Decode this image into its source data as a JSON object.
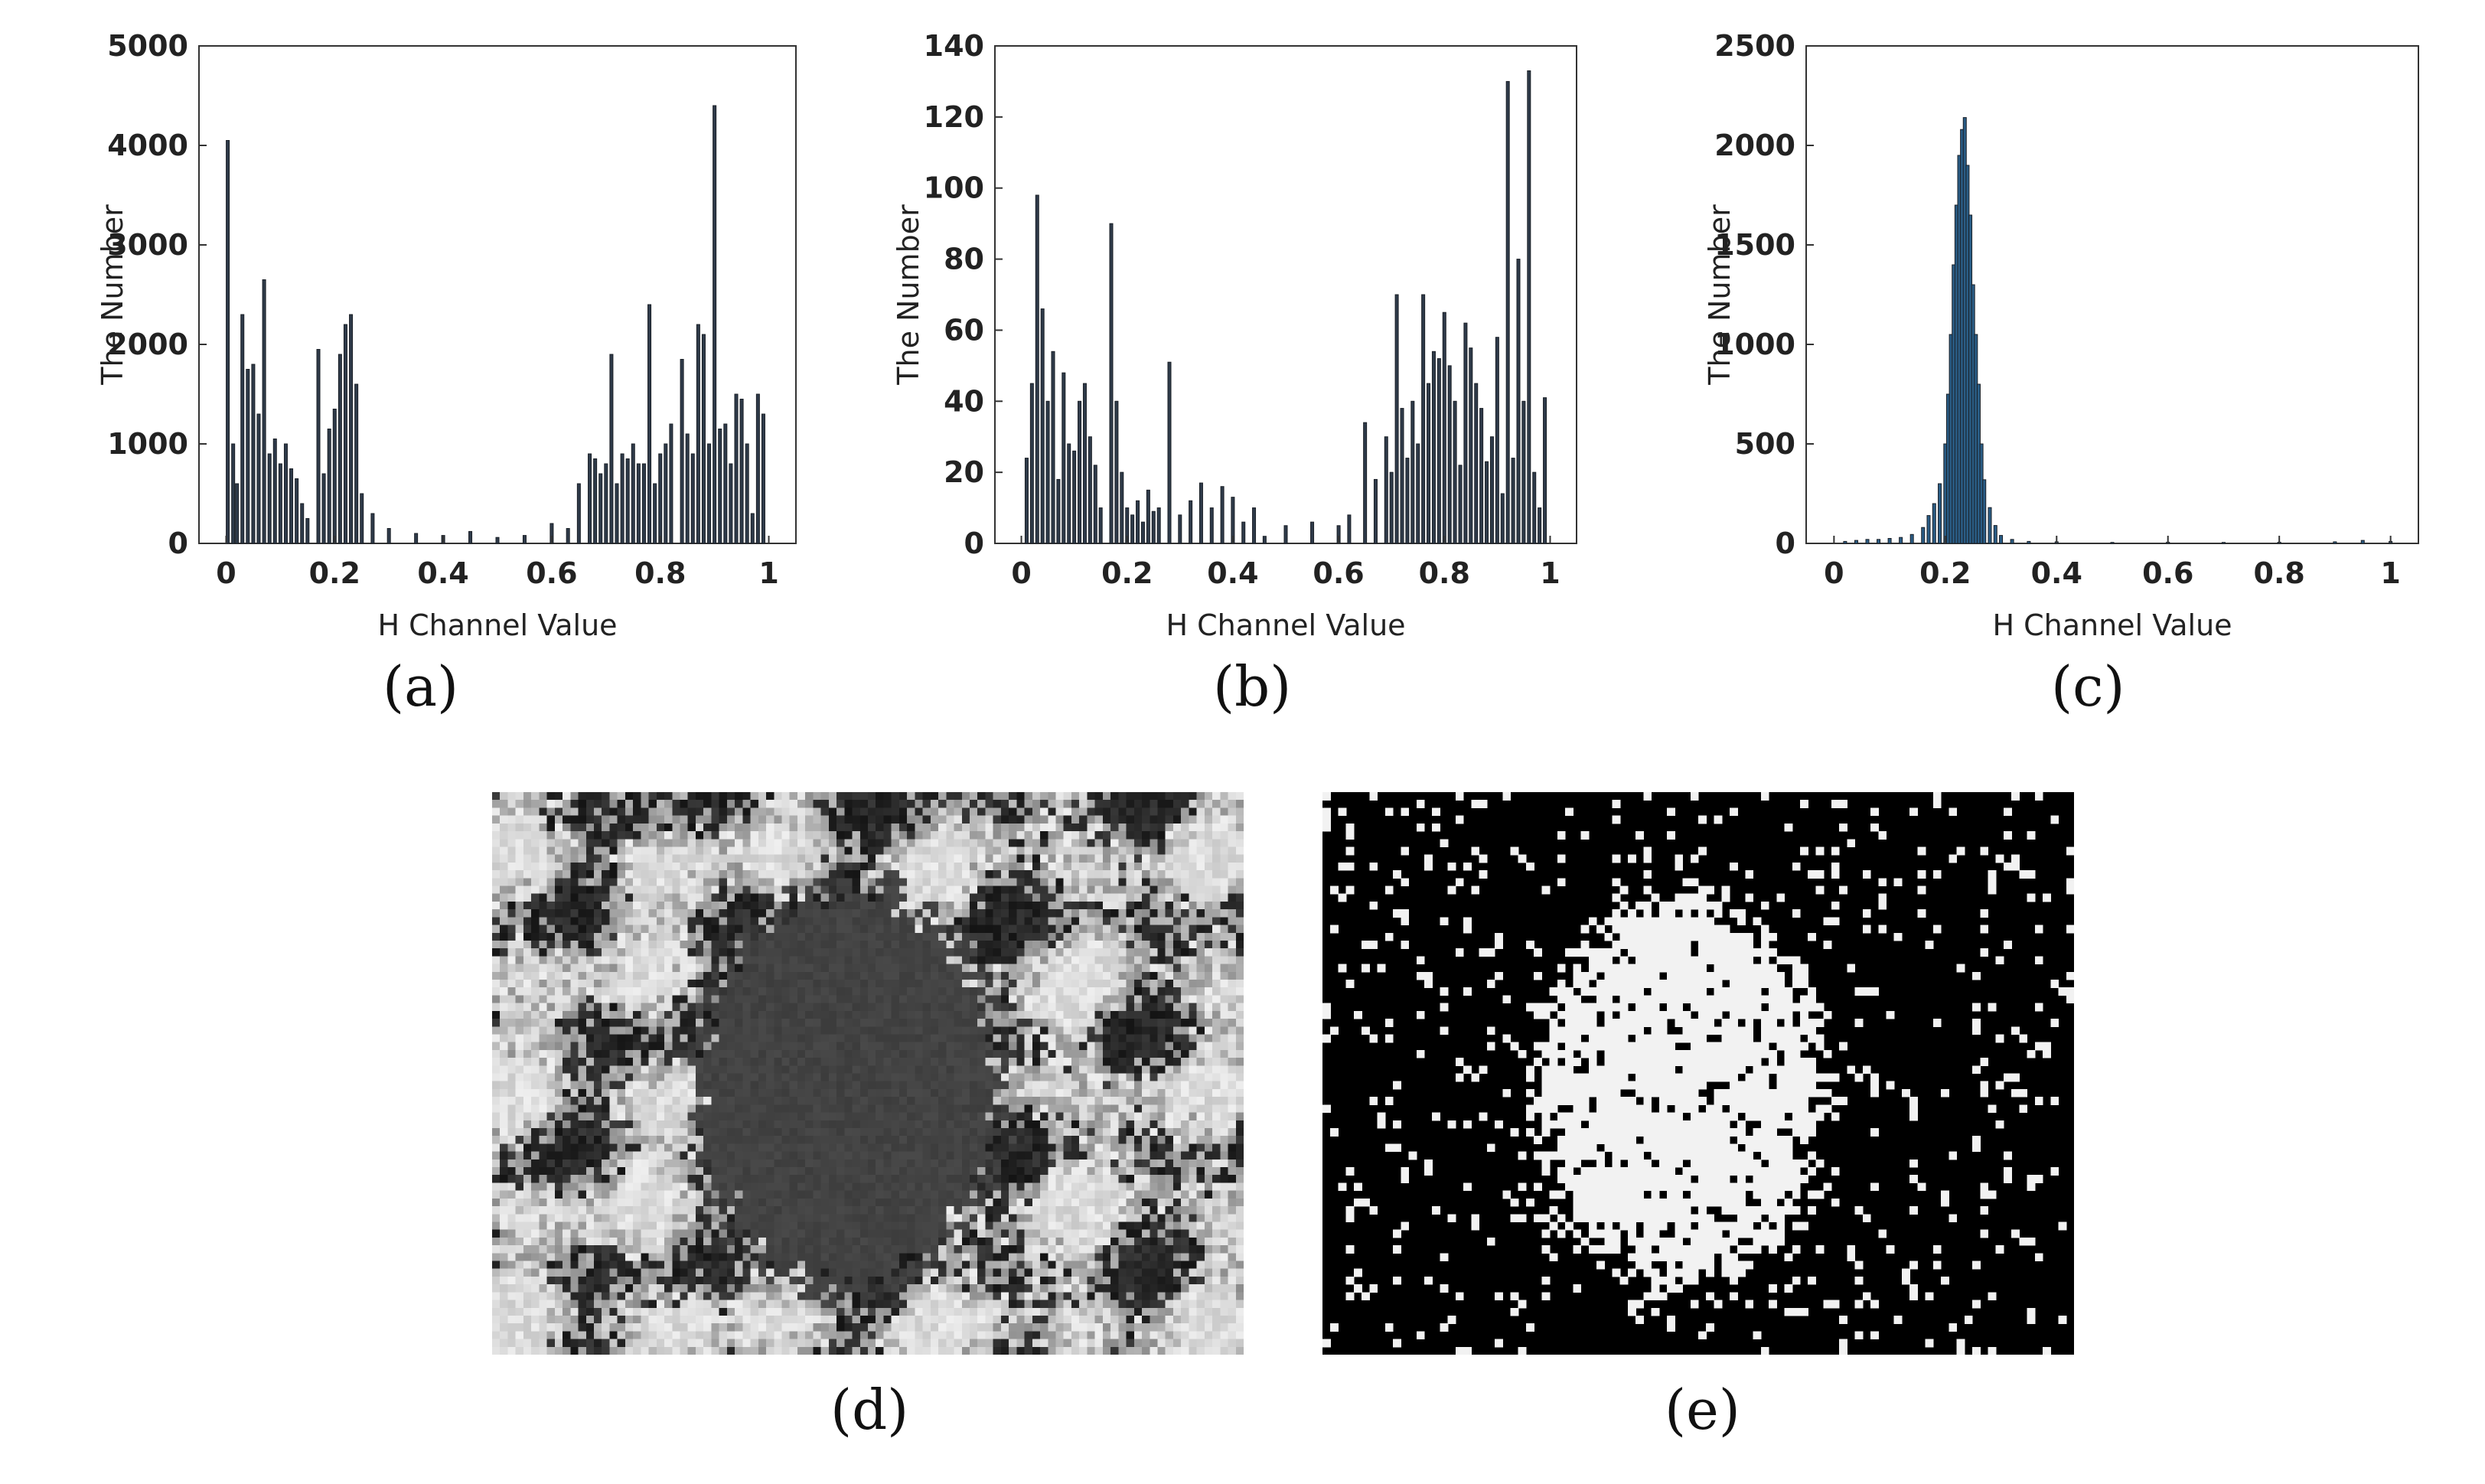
{
  "chart_data": [
    {
      "type": "bar",
      "panel_label": "(a)",
      "xlabel": "H Channel Value",
      "ylabel": "The Number",
      "xlim": [
        -0.05,
        1.05
      ],
      "ylim": [
        0,
        5000
      ],
      "xticks": [
        0,
        0.2,
        0.4,
        0.6,
        0.8,
        1
      ],
      "xtick_labels": [
        "0",
        "0.2",
        "0.4",
        "0.6",
        "0.8",
        "1"
      ],
      "yticks": [
        0,
        1000,
        2000,
        3000,
        4000,
        5000
      ],
      "ytick_labels": [
        "0",
        "1000",
        "2000",
        "3000",
        "4000",
        "5000"
      ],
      "bar_color": "#2f3b4a",
      "x": [
        0.003,
        0.013,
        0.02,
        0.03,
        0.04,
        0.05,
        0.06,
        0.07,
        0.08,
        0.09,
        0.1,
        0.11,
        0.12,
        0.13,
        0.14,
        0.15,
        0.17,
        0.18,
        0.19,
        0.2,
        0.21,
        0.22,
        0.23,
        0.24,
        0.25,
        0.27,
        0.3,
        0.35,
        0.4,
        0.45,
        0.5,
        0.55,
        0.6,
        0.63,
        0.65,
        0.67,
        0.68,
        0.69,
        0.7,
        0.71,
        0.72,
        0.73,
        0.74,
        0.75,
        0.76,
        0.77,
        0.78,
        0.79,
        0.8,
        0.81,
        0.82,
        0.84,
        0.85,
        0.86,
        0.87,
        0.88,
        0.89,
        0.9,
        0.91,
        0.92,
        0.93,
        0.94,
        0.95,
        0.96,
        0.97,
        0.98,
        0.99
      ],
      "values": [
        4050,
        1000,
        600,
        2300,
        1750,
        1800,
        1300,
        2650,
        900,
        1050,
        800,
        1000,
        750,
        650,
        400,
        250,
        1950,
        700,
        1150,
        1350,
        1900,
        2200,
        2300,
        1600,
        500,
        300,
        150,
        100,
        80,
        120,
        60,
        80,
        200,
        150,
        600,
        900,
        850,
        700,
        800,
        1900,
        600,
        900,
        850,
        1000,
        800,
        800,
        2400,
        600,
        900,
        1000,
        1200,
        1850,
        1100,
        900,
        2200,
        2100,
        1000,
        4400,
        1150,
        1200,
        800,
        1500,
        1450,
        1000,
        300,
        1500,
        1300
      ]
    },
    {
      "type": "bar",
      "panel_label": "(b)",
      "xlabel": "H Channel Value",
      "ylabel": "The Number",
      "xlim": [
        -0.05,
        1.05
      ],
      "ylim": [
        0,
        140
      ],
      "xticks": [
        0,
        0.2,
        0.4,
        0.6,
        0.8,
        1
      ],
      "xtick_labels": [
        "0",
        "0.2",
        "0.4",
        "0.6",
        "0.8",
        "1"
      ],
      "yticks": [
        0,
        20,
        40,
        60,
        80,
        100,
        120,
        140
      ],
      "ytick_labels": [
        "0",
        "20",
        "40",
        "60",
        "80",
        "100",
        "120",
        "140"
      ],
      "bar_color": "#2f3b4a",
      "x": [
        0.01,
        0.02,
        0.03,
        0.04,
        0.05,
        0.06,
        0.07,
        0.08,
        0.09,
        0.1,
        0.11,
        0.12,
        0.13,
        0.14,
        0.15,
        0.17,
        0.18,
        0.19,
        0.2,
        0.21,
        0.22,
        0.23,
        0.24,
        0.25,
        0.26,
        0.28,
        0.3,
        0.32,
        0.34,
        0.36,
        0.38,
        0.4,
        0.42,
        0.44,
        0.46,
        0.5,
        0.55,
        0.6,
        0.62,
        0.65,
        0.67,
        0.69,
        0.7,
        0.71,
        0.72,
        0.73,
        0.74,
        0.75,
        0.76,
        0.77,
        0.78,
        0.79,
        0.8,
        0.81,
        0.82,
        0.83,
        0.84,
        0.85,
        0.86,
        0.87,
        0.88,
        0.89,
        0.9,
        0.91,
        0.92,
        0.93,
        0.94,
        0.95,
        0.96,
        0.97,
        0.98,
        0.99
      ],
      "values": [
        24,
        45,
        98,
        66,
        40,
        54,
        18,
        48,
        28,
        26,
        40,
        45,
        30,
        22,
        10,
        90,
        40,
        20,
        10,
        8,
        12,
        6,
        15,
        9,
        10,
        51,
        8,
        12,
        17,
        10,
        16,
        13,
        6,
        10,
        2,
        5,
        6,
        5,
        8,
        34,
        18,
        30,
        20,
        70,
        38,
        24,
        40,
        28,
        70,
        45,
        54,
        52,
        65,
        50,
        40,
        22,
        62,
        55,
        45,
        38,
        23,
        30,
        58,
        14,
        130,
        24,
        80,
        40,
        133,
        20,
        10,
        41
      ]
    },
    {
      "type": "bar",
      "panel_label": "(c)",
      "xlabel": "H Channel Value",
      "ylabel": "The Number",
      "xlim": [
        -0.05,
        1.05
      ],
      "ylim": [
        0,
        2500
      ],
      "xticks": [
        0,
        0.2,
        0.4,
        0.6,
        0.8,
        1
      ],
      "xtick_labels": [
        "0",
        "0.2",
        "0.4",
        "0.6",
        "0.8",
        "1"
      ],
      "yticks": [
        0,
        500,
        1000,
        1500,
        2000,
        2500
      ],
      "ytick_labels": [
        "0",
        "500",
        "1000",
        "1500",
        "2000",
        "2500"
      ],
      "bar_color": "#2a5d86",
      "x": [
        0.02,
        0.04,
        0.06,
        0.08,
        0.1,
        0.12,
        0.14,
        0.16,
        0.17,
        0.18,
        0.19,
        0.2,
        0.205,
        0.21,
        0.215,
        0.22,
        0.225,
        0.23,
        0.235,
        0.24,
        0.245,
        0.25,
        0.255,
        0.26,
        0.265,
        0.27,
        0.28,
        0.29,
        0.3,
        0.32,
        0.35,
        0.4,
        0.5,
        0.6,
        0.7,
        0.8,
        0.9,
        0.95,
        1.0
      ],
      "values": [
        10,
        15,
        20,
        20,
        25,
        30,
        45,
        80,
        140,
        200,
        300,
        500,
        750,
        1050,
        1400,
        1700,
        1950,
        2080,
        2140,
        1900,
        1650,
        1300,
        1050,
        800,
        500,
        320,
        180,
        90,
        40,
        20,
        10,
        8,
        5,
        6,
        5,
        6,
        8,
        15,
        10
      ]
    }
  ],
  "panels": {
    "d": {
      "label": "(d)"
    },
    "e": {
      "label": "(e)"
    }
  }
}
